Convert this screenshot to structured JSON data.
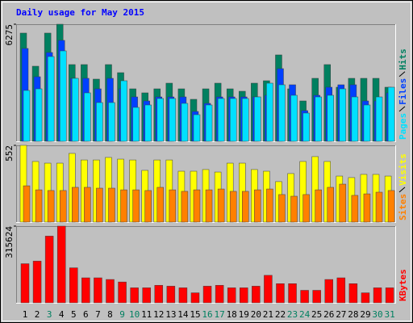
{
  "chart_data": [
    {
      "type": "bar",
      "title": "Daily usage for May 2015",
      "ylim": [
        0,
        6275
      ],
      "yticks": [
        6275
      ],
      "series": [
        {
          "name": "Hits",
          "color": "#008060",
          "values": [
            5800,
            4025,
            5800,
            6275,
            4112,
            4112,
            3333,
            4112,
            3679,
            2813,
            2597,
            2813,
            3116,
            2813,
            2251,
            2813,
            3116,
            2813,
            2683,
            3116,
            3246,
            4631,
            2813,
            2164,
            3376,
            4112,
            2900,
            3376,
            3376,
            3376,
            2900
          ]
        },
        {
          "name": "Files",
          "color": "#0040ff",
          "values": [
            4977,
            3462,
            4761,
            5410,
            3376,
            3376,
            2813,
            3376,
            2813,
            2380,
            2164,
            2380,
            2380,
            2380,
            1601,
            2034,
            2380,
            2380,
            2380,
            2380,
            2467,
            3895,
            3030,
            1645,
            2467,
            2900,
            3030,
            3030,
            2164,
            2164,
            2597
          ]
        },
        {
          "name": "Pages",
          "color": "#00e0ff",
          "values": [
            2727,
            2813,
            4544,
            4847,
            3376,
            2597,
            2077,
            2077,
            3246,
            1818,
            1948,
            2294,
            2294,
            2034,
            1428,
            1948,
            2294,
            2294,
            2294,
            2380,
            3116,
            3030,
            2467,
            1515,
            2380,
            2467,
            2813,
            2380,
            1948,
            2380,
            2900
          ]
        }
      ]
    },
    {
      "type": "bar",
      "ylim": [
        0,
        552
      ],
      "yticks": [
        552
      ],
      "series": [
        {
          "name": "Visits",
          "color": "#ffff00",
          "values": [
            552,
            436,
            424,
            424,
            494,
            447,
            447,
            465,
            453,
            447,
            372,
            447,
            447,
            366,
            366,
            378,
            360,
            424,
            424,
            378,
            366,
            291,
            349,
            436,
            471,
            436,
            331,
            320,
            343,
            343,
            331
          ]
        },
        {
          "name": "Sites",
          "color": "#ff8000",
          "values": [
            261,
            232,
            227,
            227,
            250,
            250,
            244,
            244,
            232,
            232,
            227,
            250,
            232,
            221,
            232,
            232,
            238,
            221,
            221,
            232,
            238,
            198,
            186,
            198,
            232,
            250,
            273,
            192,
            203,
            215,
            227
          ]
        }
      ]
    },
    {
      "type": "bar",
      "ylim": [
        0,
        315624
      ],
      "yticks": [
        315624
      ],
      "categories": [
        "1",
        "2",
        "3",
        "4",
        "5",
        "6",
        "7",
        "8",
        "9",
        "10",
        "11",
        "12",
        "13",
        "14",
        "15",
        "16",
        "17",
        "18",
        "19",
        "20",
        "21",
        "22",
        "23",
        "24",
        "25",
        "26",
        "27",
        "28",
        "29",
        "30",
        "31"
      ],
      "category_colors": [
        "#000000",
        "#000000",
        "#008060",
        "#000000",
        "#000000",
        "#000000",
        "#000000",
        "#000000",
        "#008060",
        "#008060",
        "#000000",
        "#000000",
        "#000000",
        "#000000",
        "#000000",
        "#008060",
        "#008060",
        "#000000",
        "#000000",
        "#000000",
        "#000000",
        "#000000",
        "#008060",
        "#008060",
        "#000000",
        "#000000",
        "#000000",
        "#000000",
        "#000000",
        "#008060",
        "#008060"
      ],
      "series": [
        {
          "name": "KBytes",
          "color": "#ff0000",
          "values": [
            161000,
            171600,
            274500,
            315624,
            144100,
            102900,
            102900,
            96100,
            85800,
            61800,
            61800,
            72100,
            68600,
            61800,
            41200,
            68600,
            72100,
            61800,
            61800,
            68600,
            113200,
            78900,
            78900,
            51500,
            51500,
            96100,
            102900,
            78900,
            41200,
            61800,
            61800
          ]
        }
      ]
    }
  ]
}
